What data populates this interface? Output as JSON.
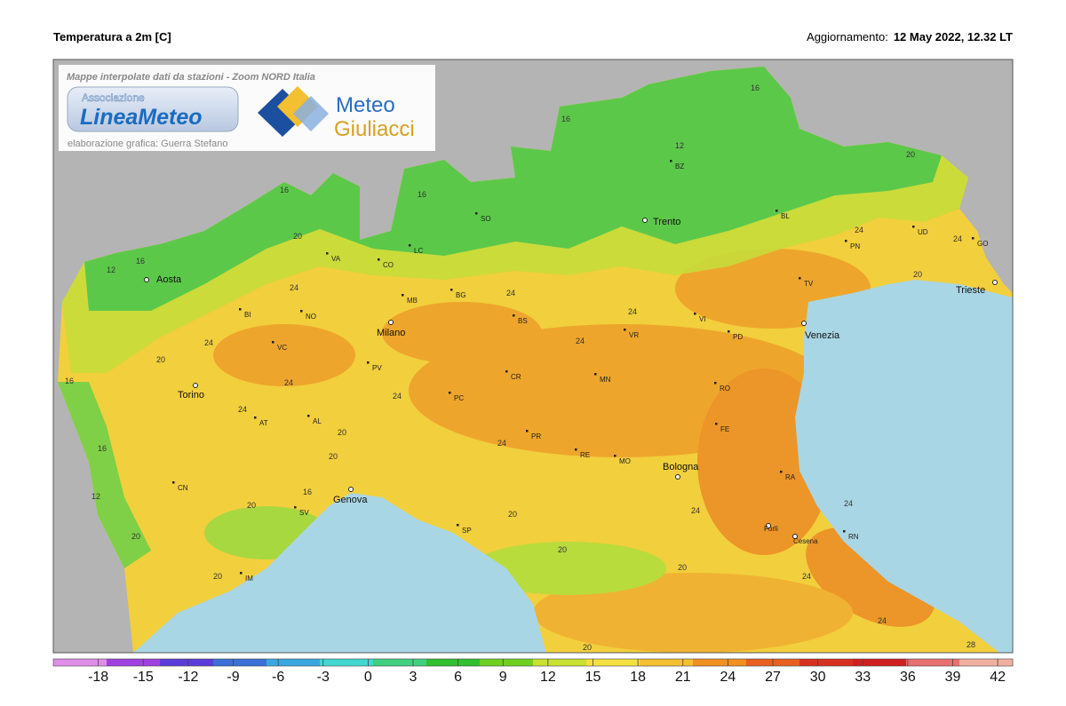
{
  "header": {
    "title": "Temperatura a 2m [C]",
    "update_label": "Aggiornamento:",
    "update_time": "12 May 2022, 12.32 LT"
  },
  "logo": {
    "caption": "Mappe interpolate dati da stazioni - Zoom NORD Italia",
    "brand1_top": "Associazione",
    "brand1": "LineaMeteo",
    "brand2_line1": "Meteo",
    "brand2_line2": "Giuliacci",
    "credit": "elaborazione grafica: Guerra Stefano"
  },
  "cities": [
    "Aosta",
    "Trento",
    "Milano",
    "Torino",
    "Genova",
    "Bologna",
    "Venezia",
    "Trieste",
    "Forlì",
    "Cesena"
  ],
  "provinces": [
    "BZ",
    "SO",
    "BL",
    "UD",
    "PN",
    "GO",
    "TV",
    "VA",
    "CO",
    "LC",
    "BG",
    "BS",
    "MB",
    "NO",
    "BI",
    "VC",
    "VI",
    "PD",
    "VR",
    "PV",
    "MN",
    "CR",
    "PC",
    "AT",
    "AL",
    "RO",
    "FE",
    "PR",
    "RE",
    "MO",
    "RA",
    "CN",
    "SV",
    "SP",
    "IM",
    "RN"
  ],
  "contour_labels": [
    16,
    12,
    16,
    20,
    16,
    16,
    12,
    16,
    20,
    24,
    24,
    20,
    24,
    24,
    24,
    24,
    24,
    20,
    16,
    16,
    12,
    20,
    24,
    24,
    20,
    20,
    16,
    20,
    20,
    24,
    24,
    20,
    20,
    20,
    24,
    24,
    24,
    28,
    24,
    20
  ],
  "colorbar": {
    "lim": [
      -21,
      43
    ],
    "ticks": [
      -18,
      -15,
      -12,
      -9,
      -6,
      -3,
      0,
      3,
      6,
      9,
      12,
      15,
      18,
      21,
      24,
      27,
      30,
      33,
      36,
      39,
      42
    ],
    "colors": [
      "#e08ee8",
      "#a040e0",
      "#5a3cd8",
      "#3a70d8",
      "#3aa8e0",
      "#40d8d0",
      "#40d080",
      "#30c030",
      "#70d020",
      "#c8e030",
      "#f4e040",
      "#f4c030",
      "#f09020",
      "#e86020",
      "#d83020",
      "#d02020",
      "#e87070",
      "#f0b0a0"
    ]
  }
}
